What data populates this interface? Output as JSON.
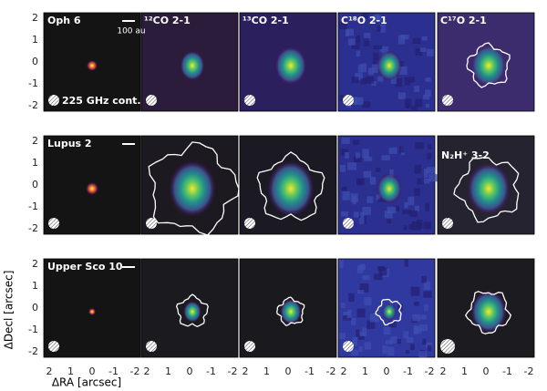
{
  "figure": {
    "rows": [
      {
        "source": "Oph 6",
        "scale_bar_label": "100 au",
        "continuum_label": "225 GHz cont.",
        "line_labels": [
          "¹²CO 2-1",
          "¹³CO 2-1",
          "C¹⁸O 2-1",
          "C¹⁷O 2-1"
        ]
      },
      {
        "source": "Lupus 2",
        "extra_label": "N₂H⁺ 3-2"
      },
      {
        "source": "Upper Sco 10"
      }
    ],
    "tick_labels": [
      "2",
      "1",
      "0",
      "-1",
      "-2"
    ],
    "x_axis_label": "ΔRA [arcsec]",
    "y_axis_label": "ΔDecl [arcsec]"
  }
}
